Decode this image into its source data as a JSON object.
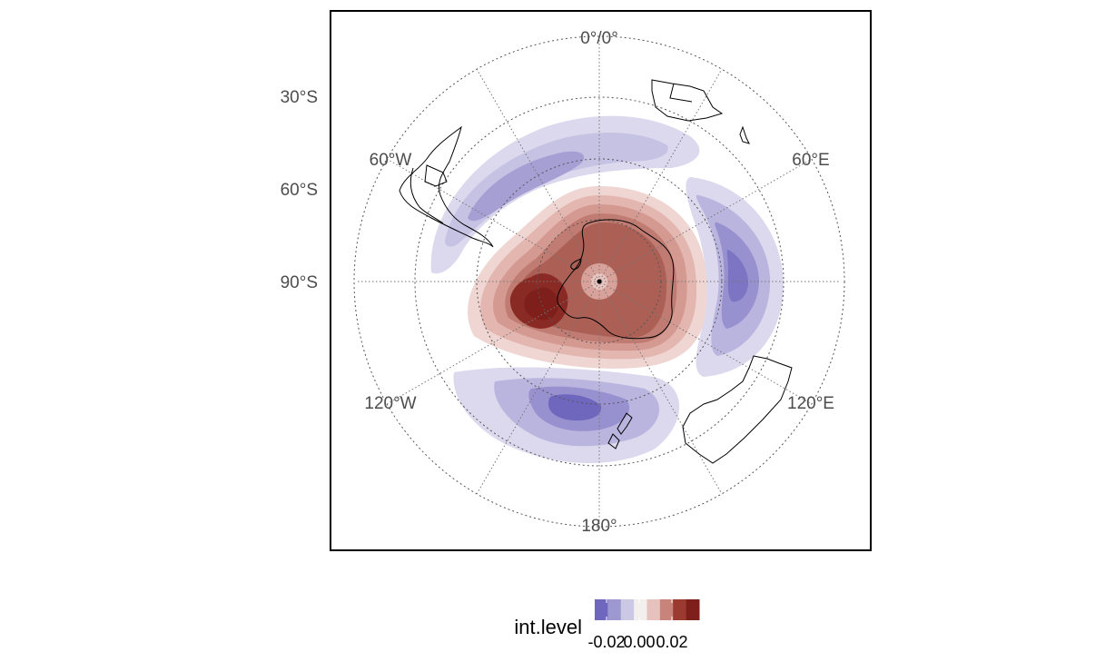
{
  "map": {
    "projection": "south-polar-orthographic",
    "latitude_labels": [
      "30°S",
      "60°S",
      "90°S"
    ],
    "longitude_labels": {
      "top": "0°/0°",
      "upper_left": "60°W",
      "upper_right": "60°E",
      "lower_left": "120°W",
      "lower_right": "120°E",
      "bottom": "180°"
    },
    "graticule": "dotted",
    "land_outline": "black",
    "field": "int.level"
  },
  "legend": {
    "title": "int.level",
    "ticks": [
      "-0.02",
      "0.00",
      "0.02"
    ],
    "colors": [
      "#6f67bd",
      "#9e98d1",
      "#cbc8e6",
      "#f4efef",
      "#e7c1bc",
      "#c8847a",
      "#9b3a30",
      "#7e1f1b"
    ]
  },
  "colors": {
    "positive_strong": "#7e1f1b",
    "positive_mid": "#b05c52",
    "positive_weak": "#efd6d2",
    "negative_strong": "#6f67bd",
    "negative_mid": "#9e98d1",
    "negative_weak": "#dcd9ee"
  }
}
